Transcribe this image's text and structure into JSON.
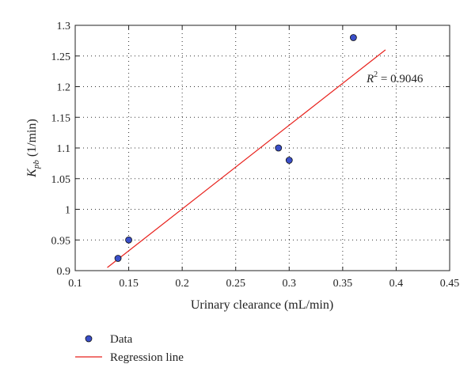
{
  "chart_data": {
    "type": "scatter",
    "xlabel": "Urinary clearance (mL/min)",
    "ylabel": {
      "base": "K",
      "sub": "pb",
      "rest": " (1/min)"
    },
    "xlim": [
      0.1,
      0.45
    ],
    "ylim": [
      0.9,
      1.3
    ],
    "x_ticks": [
      "0.1",
      "0.15",
      "0.2",
      "0.25",
      "0.3",
      "0.35",
      "0.4",
      "0.45"
    ],
    "y_ticks": [
      "0.9",
      "0.95",
      "1",
      "1.05",
      "1.1",
      "1.15",
      "1.2",
      "1.25",
      "1.3"
    ],
    "grid": true,
    "grid_style": "dotted",
    "series": [
      {
        "name": "Data",
        "kind": "points",
        "color": "#3a4fc9",
        "points": [
          {
            "x": 0.14,
            "y": 0.92
          },
          {
            "x": 0.15,
            "y": 0.95
          },
          {
            "x": 0.29,
            "y": 1.1
          },
          {
            "x": 0.3,
            "y": 1.08
          },
          {
            "x": 0.36,
            "y": 1.28
          }
        ]
      },
      {
        "name": "Regression line",
        "kind": "line",
        "color": "#e8211c",
        "points": [
          {
            "x": 0.13,
            "y": 0.905
          },
          {
            "x": 0.39,
            "y": 1.26
          }
        ]
      }
    ],
    "annotation": {
      "base": "R",
      "sup": "2",
      "rest": " = 0.9046"
    },
    "legend_position": "bottom-left"
  }
}
